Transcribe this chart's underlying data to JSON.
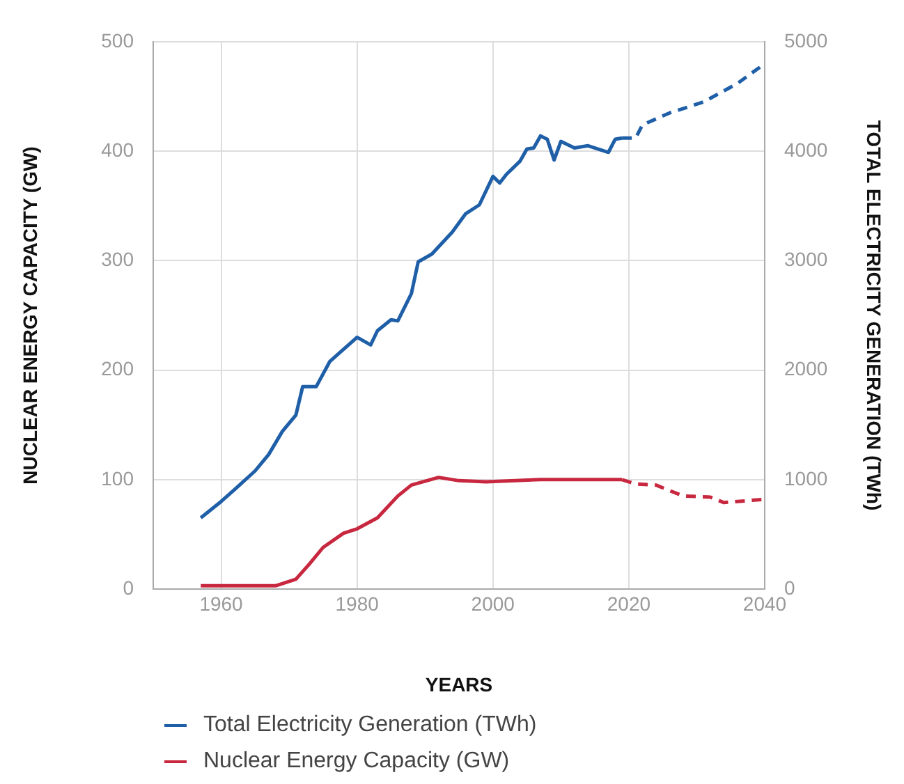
{
  "chart_data": {
    "type": "line",
    "xlabel": "YEARS",
    "ylabel": "NUCLEAR ENERGY CAPACITY (GW)",
    "y2label": "TOTAL ELECTRICITY GENERATION (TWh)",
    "xlim": [
      1950,
      2040
    ],
    "xticks": [
      1960,
      1980,
      2000,
      2020,
      2040
    ],
    "ylim": [
      0,
      500
    ],
    "yticks": [
      0,
      100,
      200,
      300,
      400,
      500
    ],
    "y2lim": [
      0,
      5000
    ],
    "y2ticks": [
      0,
      1000,
      2000,
      3000,
      4000,
      5000
    ],
    "grid": true,
    "legend": "bottom",
    "marker": "none",
    "series": [
      {
        "name": "Total Electricity Generation (TWh)",
        "color": "#1f5fa8",
        "axis": "y2",
        "line_style": "solid",
        "x": [
          1957,
          1960,
          1962,
          1965,
          1967,
          1969,
          1971,
          1972,
          1974,
          1976,
          1980,
          1982,
          1983,
          1985,
          1986,
          1988,
          1989,
          1991,
          1994,
          1996,
          1998,
          2000,
          2001,
          2002,
          2004,
          2005,
          2006,
          2007,
          2008,
          2009,
          2010,
          2012,
          2014,
          2017,
          2018,
          2019
        ],
        "values": [
          650,
          800,
          910,
          1080,
          1230,
          1440,
          1590,
          1850,
          1850,
          2080,
          2300,
          2230,
          2360,
          2460,
          2450,
          2700,
          2990,
          3060,
          3260,
          3430,
          3510,
          3770,
          3710,
          3790,
          3910,
          4020,
          4030,
          4140,
          4110,
          3920,
          4090,
          4030,
          4050,
          3990,
          4110,
          4120
        ]
      },
      {
        "color": "#1f5fa8",
        "axis": "y2",
        "line_style": "dashed",
        "x": [
          2019,
          2021,
          2022,
          2026,
          2031,
          2036,
          2040
        ],
        "values": [
          4120,
          4120,
          4240,
          4350,
          4450,
          4620,
          4800
        ]
      },
      {
        "name": "Nuclear Energy Capacity (GW)",
        "color": "#c8283f",
        "axis": "y",
        "line_style": "solid",
        "x": [
          1957,
          1968,
          1971,
          1973,
          1975,
          1978,
          1980,
          1983,
          1986,
          1988,
          1992,
          1995,
          1999,
          2007,
          2019
        ],
        "values": [
          3,
          3,
          9,
          23,
          38,
          51,
          55,
          65,
          85,
          95,
          102,
          99,
          98,
          100,
          100
        ]
      },
      {
        "color": "#c8283f",
        "axis": "y",
        "line_style": "dashed",
        "x": [
          2019,
          2021,
          2024,
          2028,
          2032,
          2034,
          2040
        ],
        "values": [
          100,
          96,
          95,
          85,
          84,
          79,
          82
        ]
      }
    ]
  }
}
